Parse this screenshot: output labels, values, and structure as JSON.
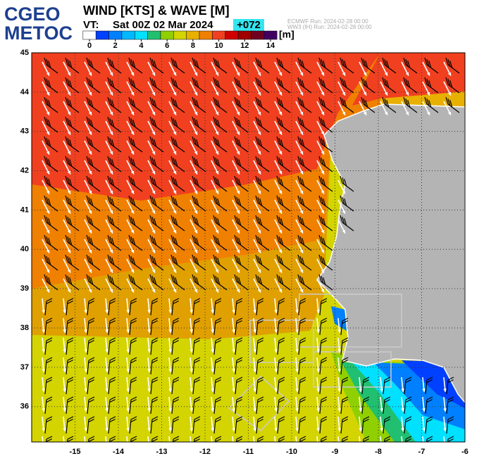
{
  "header": {
    "logo_top": "CGEO",
    "logo_bottom": "METOC",
    "title": "WIND [KTS] & WAVE [M]",
    "vt_label": "VT:",
    "valid_time": "Sat 00Z 02 Mar 2024",
    "lead": "+072",
    "run_ecmwf": "ECMWF    Run: 2024-02-28 00:00",
    "run_ww3": "WW3 (IH) Run: 2024-02-28 00:00"
  },
  "colorbar": {
    "unit": "[m]",
    "ticks": [
      0,
      2,
      4,
      6,
      8,
      10,
      12,
      14
    ],
    "colors": [
      "#ffffff",
      "#0040ff",
      "#0080ff",
      "#00b8ff",
      "#00e0ff",
      "#20c070",
      "#90d000",
      "#d4d400",
      "#e8b000",
      "#f08000",
      "#f04020",
      "#d00000",
      "#a00000",
      "#700020",
      "#400060"
    ]
  },
  "map": {
    "xlim": [
      -16,
      -6
    ],
    "ylim": [
      35.1,
      45
    ],
    "xticks": [
      -15,
      -14,
      -13,
      -12,
      -11,
      -10,
      -9,
      -8,
      -7,
      -6
    ],
    "yticks": [
      36,
      37,
      38,
      39,
      40,
      41,
      42,
      43,
      44,
      45
    ]
  }
}
